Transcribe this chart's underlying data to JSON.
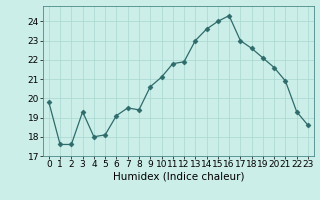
{
  "x": [
    0,
    1,
    2,
    3,
    4,
    5,
    6,
    7,
    8,
    9,
    10,
    11,
    12,
    13,
    14,
    15,
    16,
    17,
    18,
    19,
    20,
    21,
    22,
    23
  ],
  "y": [
    19.8,
    17.6,
    17.6,
    19.3,
    18.0,
    18.1,
    19.1,
    19.5,
    19.4,
    20.6,
    21.1,
    21.8,
    21.9,
    23.0,
    23.6,
    24.0,
    24.3,
    23.0,
    22.6,
    22.1,
    21.6,
    20.9,
    19.3,
    18.6
  ],
  "line_color": "#2e6b6b",
  "marker": "D",
  "marker_size": 2.5,
  "bg_color": "#cceee8",
  "grid_color": "#a8d8d0",
  "xlabel": "Humidex (Indice chaleur)",
  "xlim": [
    -0.5,
    23.5
  ],
  "ylim": [
    17.0,
    24.8
  ],
  "yticks": [
    17,
    18,
    19,
    20,
    21,
    22,
    23,
    24
  ],
  "xticks": [
    0,
    1,
    2,
    3,
    4,
    5,
    6,
    7,
    8,
    9,
    10,
    11,
    12,
    13,
    14,
    15,
    16,
    17,
    18,
    19,
    20,
    21,
    22,
    23
  ],
  "xlabel_fontsize": 7.5,
  "tick_fontsize": 6.5
}
